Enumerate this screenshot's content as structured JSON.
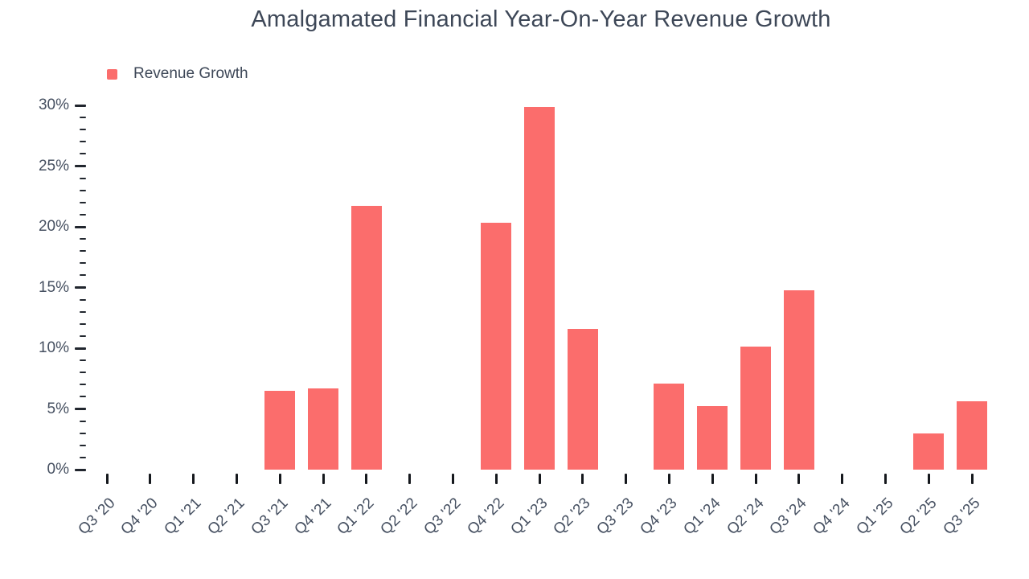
{
  "title": "Amalgamated Financial Year-On-Year Revenue Growth",
  "legend": {
    "label": "Revenue Growth",
    "swatch_color": "#fb6d6c"
  },
  "colors": {
    "bar": "#fb6d6c",
    "title_text": "#3d4757",
    "axis_text": "#465061",
    "tick_mark": "#1b1f26"
  },
  "chart_data": {
    "type": "bar",
    "title": "Amalgamated Financial Year-On-Year Revenue Growth",
    "series_name": "Revenue Growth",
    "categories": [
      "Q3 '20",
      "Q4 '20",
      "Q1 '21",
      "Q2 '21",
      "Q3 '21",
      "Q4 '21",
      "Q1 '22",
      "Q2 '22",
      "Q3 '22",
      "Q4 '22",
      "Q1 '23",
      "Q2 '23",
      "Q3 '23",
      "Q4 '23",
      "Q1 '24",
      "Q2 '24",
      "Q3 '24",
      "Q4 '24",
      "Q1 '25",
      "Q2 '25",
      "Q3 '25"
    ],
    "values": [
      0,
      0,
      0,
      0,
      6.5,
      6.7,
      21.7,
      0,
      0,
      20.3,
      29.9,
      11.6,
      0,
      7.1,
      5.2,
      10.1,
      14.8,
      0,
      0,
      3.0,
      5.6
    ],
    "value_unit": "%",
    "xlabel": "",
    "ylabel": "",
    "ylim": [
      0,
      30
    ],
    "yticks": [
      0,
      5,
      10,
      15,
      20,
      25,
      30
    ],
    "ytick_labels": [
      "0%",
      "5%",
      "10%",
      "15%",
      "20%",
      "25%",
      "30%"
    ],
    "minor_ytick_interval": 1,
    "grid": false,
    "legend_position": "top-left",
    "bar_color": "#fb6d6c"
  }
}
